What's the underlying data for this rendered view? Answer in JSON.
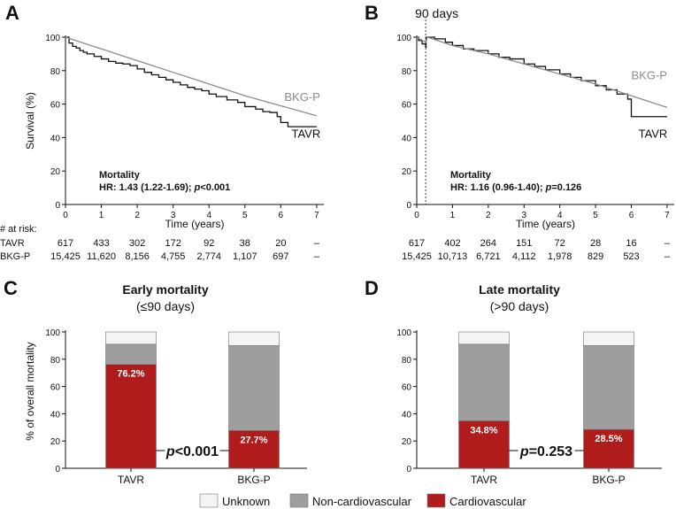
{
  "figure": {
    "legend": [
      {
        "label": "Unknown",
        "color": "#f4f4f4"
      },
      {
        "label": "Non-cardiovascular",
        "color": "#9e9e9e"
      },
      {
        "label": "Cardiovascular",
        "color": "#b01c1c"
      }
    ]
  },
  "chart_data": [
    {
      "panel": "A",
      "type": "line",
      "title": "",
      "xlabel": "Time (years)",
      "ylabel": "Survival (%)",
      "xlim": [
        0,
        7.2
      ],
      "ylim": [
        0,
        100
      ],
      "xticks": [
        0,
        1,
        2,
        3,
        4,
        5,
        6,
        7
      ],
      "yticks": [
        0,
        20,
        40,
        60,
        80,
        100
      ],
      "series": [
        {
          "name": "TAVR",
          "color": "#111111",
          "step": true,
          "x": [
            0,
            0.1,
            0.2,
            0.3,
            0.4,
            0.5,
            0.6,
            0.8,
            1.0,
            1.2,
            1.4,
            1.6,
            1.8,
            2.0,
            2.2,
            2.4,
            2.6,
            2.8,
            3.0,
            3.2,
            3.4,
            3.6,
            3.8,
            4.0,
            4.2,
            4.5,
            4.8,
            5.0,
            5.3,
            5.5,
            5.7,
            5.9,
            6.0,
            6.2,
            6.5,
            6.8,
            7.0
          ],
          "y": [
            100,
            96.5,
            94.5,
            93.5,
            92,
            91,
            90,
            88.5,
            87,
            85.5,
            84.5,
            84,
            83,
            81,
            79,
            77.5,
            76,
            74.5,
            73,
            71.5,
            70,
            69,
            68,
            66,
            64.5,
            62.5,
            61,
            58.5,
            57,
            55.5,
            55,
            52.5,
            49,
            46.5,
            46.5,
            46.5,
            46.5
          ]
        },
        {
          "name": "BKG-P",
          "color": "#8c8c8c",
          "step": false,
          "x": [
            0,
            0.5,
            1,
            1.5,
            2,
            2.5,
            3,
            3.5,
            4,
            4.5,
            5,
            5.5,
            6,
            6.5,
            7
          ],
          "y": [
            100,
            96.5,
            93,
            89.5,
            86,
            82.5,
            79,
            75.5,
            72,
            68.5,
            65,
            62,
            59,
            56,
            53
          ]
        }
      ],
      "line_labels": [
        {
          "series": "BKG-P",
          "text": "BKG-P",
          "at_x": 6.1,
          "at_y": 62
        },
        {
          "series": "TAVR",
          "text": "TAVR",
          "at_x": 6.3,
          "at_y": 40
        }
      ],
      "annotation": {
        "title": "Mortality",
        "hr_text": "HR: 1.43 (1.22-1.69);",
        "p_label": "p",
        "p_value": "<0.001"
      },
      "at_risk": {
        "heading": "# at risk:",
        "rows": [
          {
            "label": "TAVR",
            "values": [
              "617",
              "433",
              "302",
              "172",
              "92",
              "38",
              "20",
              "–"
            ]
          },
          {
            "label": "BKG-P",
            "values": [
              "15,425",
              "11,620",
              "8,156",
              "4,755",
              "2,774",
              "1,107",
              "697",
              "–"
            ]
          }
        ]
      }
    },
    {
      "panel": "B",
      "type": "line",
      "title": "",
      "xlabel": "Time (years)",
      "ylabel": "",
      "xlim": [
        0,
        7.2
      ],
      "ylim": [
        0,
        100
      ],
      "xticks": [
        0,
        1,
        2,
        3,
        4,
        5,
        6,
        7
      ],
      "yticks": [
        0,
        20,
        40,
        60,
        80,
        100
      ],
      "vline": {
        "x": 0.25,
        "label": "90 days"
      },
      "series": [
        {
          "name": "TAVR",
          "color": "#111111",
          "step": true,
          "x": [
            0,
            0.05,
            0.15,
            0.25,
            0.26,
            0.5,
            0.8,
            1.0,
            1.3,
            1.6,
            2.0,
            2.3,
            2.6,
            3.0,
            3.3,
            3.6,
            4.0,
            4.3,
            4.6,
            5.0,
            5.3,
            5.6,
            5.9,
            6.0,
            6.5,
            7.0
          ],
          "y": [
            100,
            98,
            96,
            94,
            100,
            99,
            97,
            95,
            93,
            92,
            90,
            88,
            87,
            84,
            82.5,
            80.5,
            78,
            76,
            74,
            71,
            68.5,
            66,
            63,
            52.5,
            52.5,
            52.5
          ]
        },
        {
          "name": "BKG-P",
          "color": "#8c8c8c",
          "step": false,
          "x": [
            0,
            0.25,
            0.3,
            1,
            2,
            3,
            4,
            5,
            6,
            7
          ],
          "y": [
            100,
            97,
            100,
            95,
            90,
            84,
            78,
            72,
            65,
            58
          ]
        }
      ],
      "line_labels": [
        {
          "series": "BKG-P",
          "text": "BKG-P",
          "at_x": 6.0,
          "at_y": 75
        },
        {
          "series": "TAVR",
          "text": "TAVR",
          "at_x": 6.2,
          "at_y": 40
        }
      ],
      "annotation": {
        "title": "Mortality",
        "hr_text": "HR: 1.16 (0.96-1.40);",
        "p_label": "p",
        "p_value": "=0.126"
      },
      "at_risk": {
        "heading": "",
        "rows": [
          {
            "label": "TAVR",
            "values": [
              "617",
              "402",
              "264",
              "151",
              "72",
              "28",
              "16",
              "–"
            ]
          },
          {
            "label": "BKG-P",
            "values": [
              "15,425",
              "10,713",
              "6,721",
              "4,112",
              "1,978",
              "829",
              "523",
              "–"
            ]
          }
        ]
      }
    },
    {
      "panel": "C",
      "type": "bar",
      "stacked": true,
      "title": "Early mortality",
      "subtitle": "(≤90 days)",
      "xlabel": "",
      "ylabel": "% of overall mortality",
      "ylim": [
        0,
        100
      ],
      "yticks": [
        0,
        20,
        40,
        60,
        80,
        100
      ],
      "categories": [
        "TAVR",
        "BKG-P"
      ],
      "series": [
        {
          "name": "Cardiovascular",
          "color": "#b01c1c",
          "values": [
            76.2,
            27.7
          ]
        },
        {
          "name": "Non-cardiovascular",
          "color": "#9e9e9e",
          "values": [
            14.8,
            62.3
          ]
        },
        {
          "name": "Unknown",
          "color": "#f4f4f4",
          "values": [
            9.0,
            10.0
          ]
        }
      ],
      "bar_labels": [
        "76.2%",
        "27.7%"
      ],
      "p_annotation": {
        "p_label": "p",
        "p_value": "<0.001"
      }
    },
    {
      "panel": "D",
      "type": "bar",
      "stacked": true,
      "title": "Late mortality",
      "subtitle": "(>90 days)",
      "xlabel": "",
      "ylabel": "",
      "ylim": [
        0,
        100
      ],
      "yticks": [
        0,
        20,
        40,
        60,
        80,
        100
      ],
      "categories": [
        "TAVR",
        "BKG-P"
      ],
      "series": [
        {
          "name": "Cardiovascular",
          "color": "#b01c1c",
          "values": [
            34.8,
            28.5
          ]
        },
        {
          "name": "Non-cardiovascular",
          "color": "#9e9e9e",
          "values": [
            56.2,
            61.5
          ]
        },
        {
          "name": "Unknown",
          "color": "#f4f4f4",
          "values": [
            9.0,
            10.0
          ]
        }
      ],
      "bar_labels": [
        "34.8%",
        "28.5%"
      ],
      "p_annotation": {
        "p_label": "p",
        "p_value": "=0.253"
      }
    }
  ]
}
